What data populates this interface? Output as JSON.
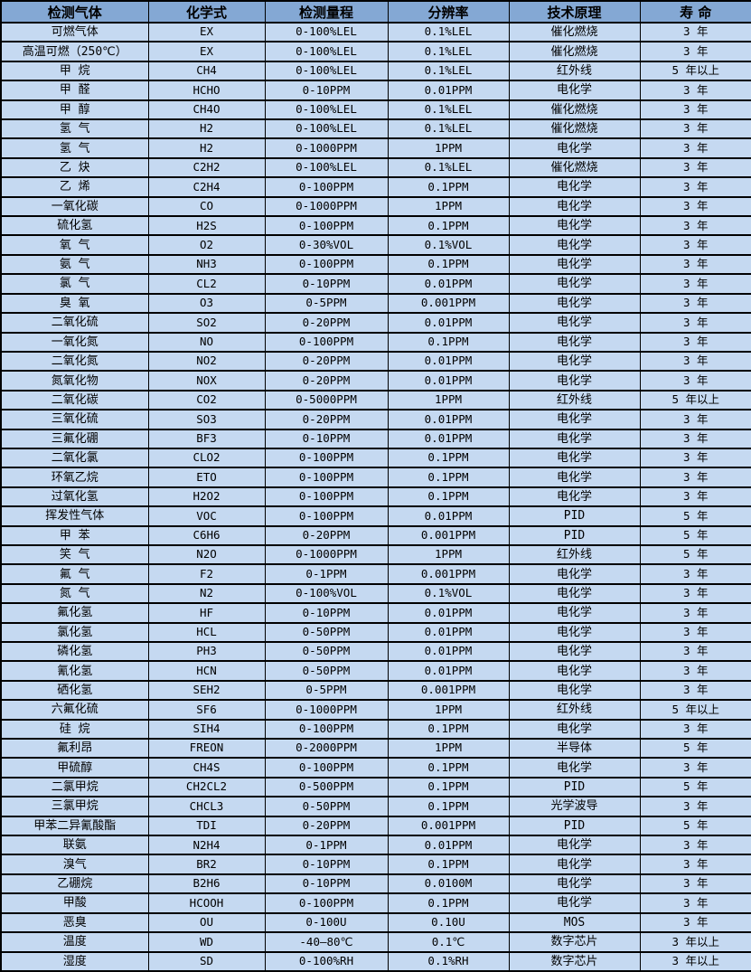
{
  "table": {
    "columns": [
      "检测气体",
      "化学式",
      "检测量程",
      "分辨率",
      "技术原理",
      "寿 命"
    ],
    "column_keys": [
      "gas",
      "formula",
      "range",
      "resolution",
      "principle",
      "lifespan"
    ],
    "colors": {
      "header_bg": "#84A8D4",
      "row_bg": "#C5D9F1",
      "border": "#000000",
      "text": "#000000"
    },
    "rows": [
      [
        "可燃气体",
        "EX",
        "0-100%LEL",
        "0.1%LEL",
        "催化燃烧",
        "3 年"
      ],
      [
        "高温可燃（250℃）",
        "EX",
        "0-100%LEL",
        "0.1%LEL",
        "催化燃烧",
        "3 年"
      ],
      [
        "甲 烷",
        "CH4",
        "0-100%LEL",
        "0.1%LEL",
        "红外线",
        "5 年以上"
      ],
      [
        "甲 醛",
        "HCHO",
        "0-10PPM",
        "0.01PPM",
        "电化学",
        "3 年"
      ],
      [
        "甲 醇",
        "CH4O",
        "0-100%LEL",
        "0.1%LEL",
        "催化燃烧",
        "3 年"
      ],
      [
        "氢 气",
        "H2",
        "0-100%LEL",
        "0.1%LEL",
        "催化燃烧",
        "3 年"
      ],
      [
        "氢 气",
        "H2",
        "0-1000PPM",
        "1PPM",
        "电化学",
        "3 年"
      ],
      [
        "乙 炔",
        "C2H2",
        "0-100%LEL",
        "0.1%LEL",
        "催化燃烧",
        "3 年"
      ],
      [
        "乙 烯",
        "C2H4",
        "0-100PPM",
        "0.1PPM",
        "电化学",
        "3 年"
      ],
      [
        "一氧化碳",
        "CO",
        "0-1000PPM",
        "1PPM",
        "电化学",
        "3 年"
      ],
      [
        "硫化氢",
        "H2S",
        "0-100PPM",
        "0.1PPM",
        "电化学",
        "3 年"
      ],
      [
        "氧 气",
        "O2",
        "0-30%VOL",
        "0.1%VOL",
        "电化学",
        "3 年"
      ],
      [
        "氨 气",
        "NH3",
        "0-100PPM",
        "0.1PPM",
        "电化学",
        "3 年"
      ],
      [
        "氯 气",
        "CL2",
        "0-10PPM",
        "0.01PPM",
        "电化学",
        "3 年"
      ],
      [
        "臭 氧",
        "O3",
        "0-5PPM",
        "0.001PPM",
        "电化学",
        "3 年"
      ],
      [
        "二氧化硫",
        "SO2",
        "0-20PPM",
        "0.01PPM",
        "电化学",
        "3 年"
      ],
      [
        "一氧化氮",
        "NO",
        "0-100PPM",
        "0.1PPM",
        "电化学",
        "3 年"
      ],
      [
        "二氧化氮",
        "NO2",
        "0-20PPM",
        "0.01PPM",
        "电化学",
        "3 年"
      ],
      [
        "氮氧化物",
        "NOX",
        "0-20PPM",
        "0.01PPM",
        "电化学",
        "3 年"
      ],
      [
        "二氧化碳",
        "CO2",
        "0-5000PPM",
        "1PPM",
        "红外线",
        "5 年以上"
      ],
      [
        "三氧化硫",
        "SO3",
        "0-20PPM",
        "0.01PPM",
        "电化学",
        "3 年"
      ],
      [
        "三氟化硼",
        "BF3",
        "0-10PPM",
        "0.01PPM",
        "电化学",
        "3 年"
      ],
      [
        "二氧化氯",
        "CLO2",
        "0-100PPM",
        "0.1PPM",
        "电化学",
        "3 年"
      ],
      [
        "环氧乙烷",
        "ETO",
        "0-100PPM",
        "0.1PPM",
        "电化学",
        "3 年"
      ],
      [
        "过氧化氢",
        "H2O2",
        "0-100PPM",
        "0.1PPM",
        "电化学",
        "3 年"
      ],
      [
        "挥发性气体",
        "VOC",
        "0-100PPM",
        "0.01PPM",
        "PID",
        "5 年"
      ],
      [
        "甲 苯",
        "C6H6",
        "0-20PPM",
        "0.001PPM",
        "PID",
        "5 年"
      ],
      [
        "笑 气",
        "N2O",
        "0-1000PPM",
        "1PPM",
        "红外线",
        "5 年"
      ],
      [
        "氟 气",
        "F2",
        "0-1PPM",
        "0.001PPM",
        "电化学",
        "3 年"
      ],
      [
        "氮 气",
        "N2",
        "0-100%VOL",
        "0.1%VOL",
        "电化学",
        "3 年"
      ],
      [
        "氟化氢",
        "HF",
        "0-10PPM",
        "0.01PPM",
        "电化学",
        "3 年"
      ],
      [
        "氯化氢",
        "HCL",
        "0-50PPM",
        "0.01PPM",
        "电化学",
        "3 年"
      ],
      [
        "磷化氢",
        "PH3",
        "0-50PPM",
        "0.01PPM",
        "电化学",
        "3 年"
      ],
      [
        "氰化氢",
        "HCN",
        "0-50PPM",
        "0.01PPM",
        "电化学",
        "3 年"
      ],
      [
        "硒化氢",
        "SEH2",
        "0-5PPM",
        "0.001PPM",
        "电化学",
        "3 年"
      ],
      [
        "六氟化硫",
        "SF6",
        "0-1000PPM",
        "1PPM",
        "红外线",
        "5 年以上"
      ],
      [
        "硅 烷",
        "SIH4",
        "0-100PPM",
        "0.1PPM",
        "电化学",
        "3 年"
      ],
      [
        "氟利昂",
        "FREON",
        "0-2000PPM",
        "1PPM",
        "半导体",
        "5 年"
      ],
      [
        "甲硫醇",
        "CH4S",
        "0-100PPM",
        "0.1PPM",
        "电化学",
        "3 年"
      ],
      [
        "二氯甲烷",
        "CH2CL2",
        "0-500PPM",
        "0.1PPM",
        "PID",
        "5 年"
      ],
      [
        "三氯甲烷",
        "CHCL3",
        "0-50PPM",
        "0.1PPM",
        "光学波导",
        "3 年"
      ],
      [
        "甲苯二异氰酸酯",
        "TDI",
        "0-20PPM",
        "0.001PPM",
        "PID",
        "5 年"
      ],
      [
        "联氨",
        "N2H4",
        "0-1PPM",
        "0.01PPM",
        "电化学",
        "3 年"
      ],
      [
        "溴气",
        "BR2",
        "0-10PPM",
        "0.1PPM",
        "电化学",
        "3 年"
      ],
      [
        "乙硼烷",
        "B2H6",
        "0-10PPM",
        "0.0100M",
        "电化学",
        "3 年"
      ],
      [
        "甲酸",
        "HCOOH",
        "0-100PPM",
        "0.1PPM",
        "电化学",
        "3 年"
      ],
      [
        "恶臭",
        "OU",
        "0-100U",
        "0.10U",
        "MOS",
        "3 年"
      ],
      [
        "温度",
        "WD",
        "-40—80℃",
        "0.1℃",
        "数字芯片",
        "3 年以上"
      ],
      [
        "湿度",
        "SD",
        "0-100%RH",
        "0.1%RH",
        "数字芯片",
        "3 年以上"
      ]
    ]
  },
  "chart_data": {
    "type": "table",
    "title": "",
    "columns": [
      "检测气体",
      "化学式",
      "检测量程",
      "分辨率",
      "技术原理",
      "寿 命"
    ],
    "rows_ref": "table.rows"
  }
}
